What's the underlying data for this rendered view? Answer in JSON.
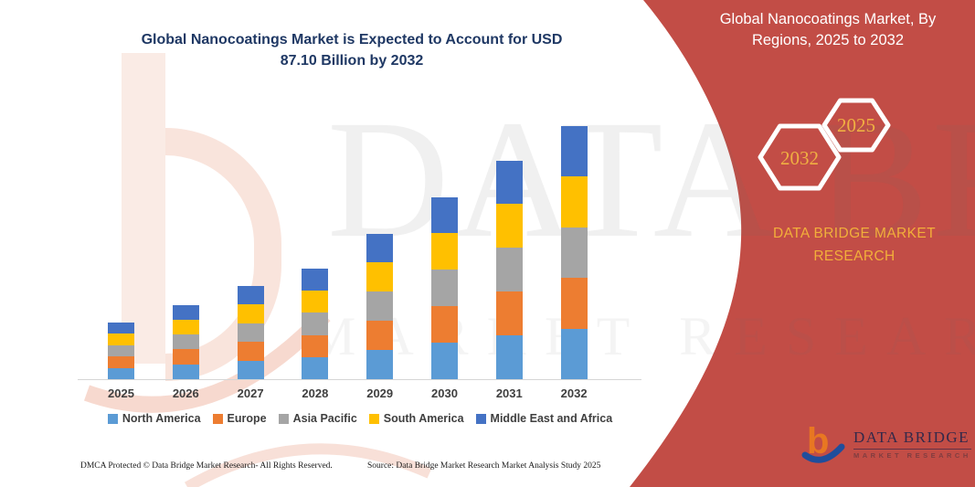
{
  "page": {
    "main_title_lines": [
      "Global Nanocoatings Market is Expected to Account for USD",
      "87.10 Billion by 2032"
    ],
    "footer": {
      "dmca": "DMCA Protected © Data Bridge Market Research-  All Rights Reserved.",
      "source": "Source: Data Bridge Market Research  Market Analysis Study 2025"
    }
  },
  "banner": {
    "title_lines": [
      "Global Nanocoatings Market, By",
      "Regions, 2025 to 2032"
    ],
    "hexagons": [
      {
        "label": "2032"
      },
      {
        "label": "2025"
      }
    ],
    "brand_lines": [
      "DATA BRIDGE MARKET",
      "RESEARCH"
    ],
    "colors": {
      "background": "#C24D46",
      "accent_gold": "#F2AF3A",
      "text": "#FFFFFF"
    }
  },
  "brand_logo": {
    "name": "DATA BRIDGE",
    "subtitle": "MARKET RESEARCH"
  },
  "watermark": {
    "line1": "DATA BRIDGE",
    "line2": "MARKET RESEARCH"
  },
  "chart_data": {
    "type": "bar",
    "stacked": true,
    "title": "Global Nanocoatings Market is Expected to Account for USD 87.10 Billion by 2032",
    "xlabel": "",
    "ylabel": "",
    "unit": "USD billion (values estimated from bar heights; image states USD 87.10 billion total for 2032)",
    "categories": [
      "2025",
      "2026",
      "2027",
      "2028",
      "2029",
      "2030",
      "2031",
      "2032"
    ],
    "series": [
      {
        "name": "North America",
        "color": "#5B9BD5",
        "values": [
          3.9,
          5.1,
          6.4,
          7.6,
          10.0,
          12.5,
          15.0,
          17.4
        ]
      },
      {
        "name": "Europe",
        "color": "#ED7D31",
        "values": [
          3.9,
          5.1,
          6.4,
          7.6,
          10.0,
          12.5,
          15.0,
          17.4
        ]
      },
      {
        "name": "Asia Pacific",
        "color": "#A5A5A5",
        "values": [
          3.9,
          5.1,
          6.4,
          7.6,
          10.0,
          12.5,
          15.0,
          17.4
        ]
      },
      {
        "name": "South America",
        "color": "#FFC000",
        "values": [
          3.9,
          5.1,
          6.4,
          7.6,
          10.0,
          12.5,
          15.0,
          17.4
        ]
      },
      {
        "name": "Middle East and Africa",
        "color": "#4472C4",
        "values": [
          3.9,
          5.1,
          6.4,
          7.6,
          10.0,
          12.5,
          15.0,
          17.4
        ]
      }
    ],
    "totals": [
      19.5,
      25.5,
      32.0,
      38.0,
      50.0,
      62.5,
      75.0,
      87.1
    ],
    "ylim": [
      0,
      91
    ],
    "grid": false,
    "y_axis_shown": false,
    "legend_position": "bottom"
  }
}
